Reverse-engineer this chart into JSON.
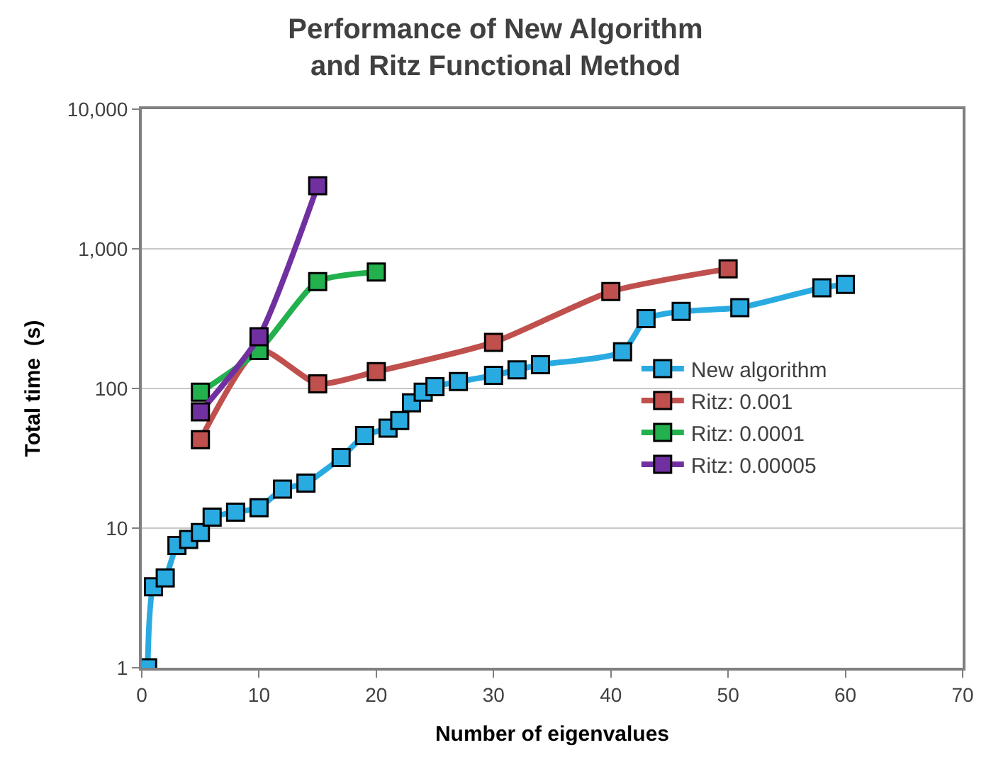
{
  "chart_data": {
    "type": "line",
    "title": "Performance of New Algorithm\nand Ritz Functional Method",
    "xlabel": "Number of eigenvalues",
    "ylabel": "Total time  (s)",
    "log": "y",
    "xlim": [
      0,
      70
    ],
    "xticks": [
      0,
      10,
      20,
      30,
      40,
      50,
      60,
      70
    ],
    "ylim": [
      1,
      10000
    ],
    "yticks": [
      1,
      10,
      100,
      {
        "value": 1000,
        "label": "1,000"
      },
      {
        "value": 10000,
        "label": "10,000"
      }
    ],
    "grid": "y",
    "legend": "right",
    "marker": "square",
    "line_style": "solid",
    "series": [
      {
        "name": "New algorithm",
        "color": "#29abe2",
        "x": [
          0.5,
          1,
          2,
          3,
          4,
          5,
          6,
          8,
          10,
          12,
          14,
          17,
          19,
          21,
          22,
          23,
          24,
          25,
          27,
          30,
          32,
          34,
          41,
          43,
          46,
          51,
          58,
          60
        ],
        "values": [
          1,
          3.8,
          4.4,
          7.5,
          8.3,
          9.3,
          12,
          13,
          14,
          19,
          21,
          32,
          46,
          52,
          59,
          79,
          94,
          103,
          112,
          124,
          136,
          148,
          183,
          316,
          356,
          379,
          526,
          556
        ]
      },
      {
        "name": "Ritz: 0.001",
        "color": "#c0504d",
        "x": [
          5,
          10,
          15,
          20,
          30,
          40,
          50
        ],
        "values": [
          43,
          190,
          108,
          132,
          214,
          494,
          719
        ]
      },
      {
        "name": "Ritz: 0.0001",
        "color": "#22b14c",
        "x": [
          5,
          10,
          15,
          20
        ],
        "values": [
          94,
          187,
          582,
          682
        ]
      },
      {
        "name": "Ritz: 0.00005",
        "color": "#7030a0",
        "x": [
          5,
          10,
          15
        ],
        "values": [
          68,
          235,
          2830
        ]
      }
    ]
  }
}
